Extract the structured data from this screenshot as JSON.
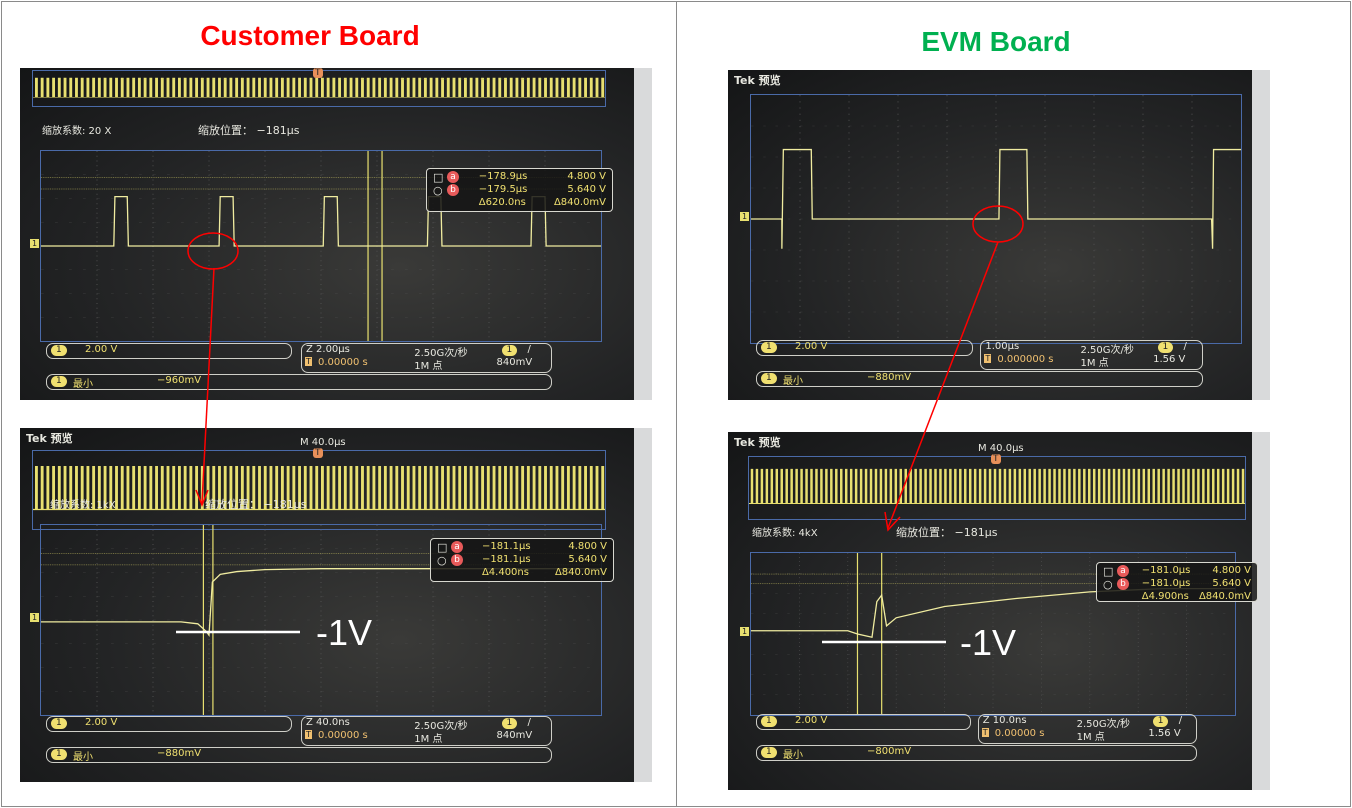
{
  "titles": {
    "left": "Customer Board",
    "right": "EVM Board",
    "left_color": "#ff0000",
    "right_color": "#00b050"
  },
  "annotation": {
    "level_label": "-1V",
    "arrow_color": "#ff0000"
  },
  "scopes": [
    {
      "tek_label": "",
      "overview_label": "",
      "zoom_factor": "缩放系数: 20 X",
      "zoom_position": "缩放位置： −181μs",
      "cursor": {
        "a": "a",
        "b": "b",
        "a_time": "−178.9μs",
        "a_volt": "4.800 V",
        "b_time": "−179.5μs",
        "b_volt": "5.640 V",
        "delta_t": "Δ620.0ns",
        "delta_v": "Δ840.0mV"
      },
      "readout": {
        "channel": "1",
        "scale": "2.00 V",
        "timebase": "Z 2.00μs",
        "trigger_pos": "0.00000 s",
        "sample_rate": "2.50G次/秒",
        "record": "1M 点",
        "trigger_level": "840mV",
        "trigger_slope": "/",
        "meas_name": "最小",
        "meas_value": "−960mV"
      }
    },
    {
      "tek_label": "Tek 预览",
      "overview_label": "M 40.0μs",
      "zoom_factor": "缩放系数: 1kX",
      "zoom_position": "缩放位置： −181μs",
      "cursor": {
        "a": "a",
        "b": "b",
        "a_time": "−181.1μs",
        "a_volt": "4.800 V",
        "b_time": "−181.1μs",
        "b_volt": "5.640 V",
        "delta_t": "Δ4.400ns",
        "delta_v": "Δ840.0mV"
      },
      "readout": {
        "channel": "1",
        "scale": "2.00 V",
        "timebase": "Z 40.0ns",
        "trigger_pos": "0.00000 s",
        "sample_rate": "2.50G次/秒",
        "record": "1M 点",
        "trigger_level": "840mV",
        "trigger_slope": "/",
        "meas_name": "最小",
        "meas_value": "−880mV"
      }
    },
    {
      "tek_label": "Tek 预览",
      "overview_label": "",
      "zoom_factor": "",
      "zoom_position": "",
      "cursor": null,
      "readout": {
        "channel": "1",
        "scale": "2.00 V",
        "timebase": "1.00μs",
        "trigger_pos": "0.000000 s",
        "sample_rate": "2.50G次/秒",
        "record": "1M 点",
        "trigger_level": "1.56 V",
        "trigger_slope": "/",
        "meas_name": "最小",
        "meas_value": "−880mV"
      }
    },
    {
      "tek_label": "Tek 预览",
      "overview_label": "M 40.0μs",
      "zoom_factor": "缩放系数: 4kX",
      "zoom_position": "缩放位置： −181μs",
      "cursor": {
        "a": "a",
        "b": "b",
        "a_time": "−181.0μs",
        "a_volt": "4.800 V",
        "b_time": "−181.0μs",
        "b_volt": "5.640 V",
        "delta_t": "Δ4.900ns",
        "delta_v": "Δ840.0mV"
      },
      "readout": {
        "channel": "1",
        "scale": "2.00 V",
        "timebase": "Z 10.0ns",
        "trigger_pos": "0.00000 s",
        "sample_rate": "2.50G次/秒",
        "record": "1M 点",
        "trigger_level": "1.56 V",
        "trigger_slope": "/",
        "meas_name": "最小",
        "meas_value": "−800mV"
      }
    }
  ]
}
